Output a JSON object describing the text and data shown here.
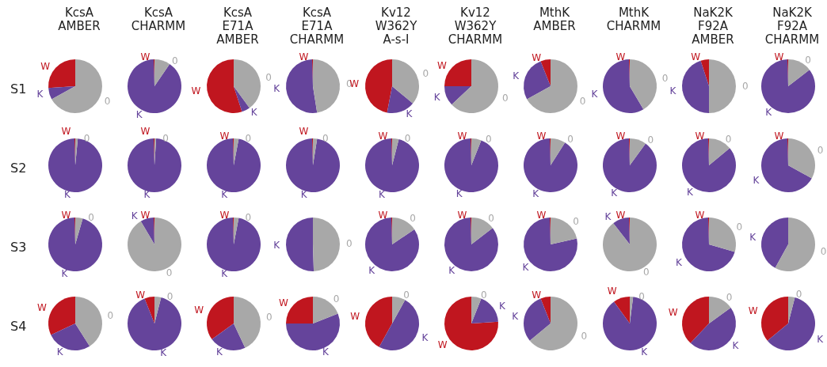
{
  "chart_data": [
    {
      "type": "pie",
      "title": "KcsA\nAMBER",
      "ylabel": "S1",
      "categories": [
        "W",
        "K",
        "0"
      ],
      "values": [
        26,
        7,
        67
      ],
      "colors": [
        "#c0161f",
        "#65449b",
        "#a8a8a8"
      ]
    },
    {
      "type": "pie",
      "title": "KcsA\nCHARMM",
      "categories": [
        "W",
        "K",
        "0"
      ],
      "values": [
        0.5,
        90,
        9.5
      ],
      "colors": [
        "#c0161f",
        "#65449b",
        "#a8a8a8"
      ]
    },
    {
      "type": "pie",
      "title": "KcsA\nE71A\nAMBER",
      "categories": [
        "W",
        "K",
        "0"
      ],
      "values": [
        55,
        5,
        40
      ],
      "colors": [
        "#c0161f",
        "#65449b",
        "#a8a8a8"
      ]
    },
    {
      "type": "pie",
      "title": "KcsA\nE71A\nCHARMM",
      "categories": [
        "W",
        "K",
        "0"
      ],
      "values": [
        0.5,
        52,
        47.5
      ],
      "colors": [
        "#c0161f",
        "#65449b",
        "#a8a8a8"
      ]
    },
    {
      "type": "pie",
      "title": "Kv12\nW362Y\nA-s-I",
      "categories": [
        "W",
        "K",
        "0"
      ],
      "values": [
        47,
        17,
        36
      ],
      "colors": [
        "#c0161f",
        "#65449b",
        "#a8a8a8"
      ]
    },
    {
      "type": "pie",
      "title": "Kv12\nW362Y\nCHARMM",
      "categories": [
        "W",
        "K",
        "0"
      ],
      "values": [
        25,
        12,
        63
      ],
      "colors": [
        "#c0161f",
        "#65449b",
        "#a8a8a8"
      ]
    },
    {
      "type": "pie",
      "title": "MthK\nAMBER",
      "categories": [
        "W",
        "K",
        "0"
      ],
      "values": [
        6,
        27,
        67
      ],
      "colors": [
        "#c0161f",
        "#65449b",
        "#a8a8a8"
      ]
    },
    {
      "type": "pie",
      "title": "MthK\nCHARMM",
      "categories": [
        "W",
        "K",
        "0"
      ],
      "values": [
        0.5,
        58,
        41.5
      ],
      "colors": [
        "#c0161f",
        "#65449b",
        "#a8a8a8"
      ]
    },
    {
      "type": "pie",
      "title": "NaK2K\nF92A\nAMBER",
      "categories": [
        "W",
        "K",
        "0"
      ],
      "values": [
        5,
        45,
        50
      ],
      "colors": [
        "#c0161f",
        "#65449b",
        "#a8a8a8"
      ]
    },
    {
      "type": "pie",
      "title": "NaK2K\nF92A\nCHARMM",
      "categories": [
        "W",
        "K",
        "0"
      ],
      "values": [
        0.5,
        85,
        14.5
      ],
      "colors": [
        "#c0161f",
        "#65449b",
        "#a8a8a8"
      ]
    },
    {
      "type": "pie",
      "ylabel": "S2",
      "categories": [
        "W",
        "K",
        "0"
      ],
      "values": [
        0.5,
        98,
        1.5
      ],
      "colors": [
        "#c0161f",
        "#65449b",
        "#a8a8a8"
      ]
    },
    {
      "type": "pie",
      "categories": [
        "W",
        "K",
        "0"
      ],
      "values": [
        0.5,
        98.5,
        1
      ],
      "colors": [
        "#c0161f",
        "#65449b",
        "#a8a8a8"
      ]
    },
    {
      "type": "pie",
      "categories": [
        "W",
        "K",
        "0"
      ],
      "values": [
        0.5,
        96.5,
        3
      ],
      "colors": [
        "#c0161f",
        "#65449b",
        "#a8a8a8"
      ]
    },
    {
      "type": "pie",
      "categories": [
        "W",
        "K",
        "0"
      ],
      "values": [
        0.5,
        97,
        2.5
      ],
      "colors": [
        "#c0161f",
        "#65449b",
        "#a8a8a8"
      ]
    },
    {
      "type": "pie",
      "categories": [
        "W",
        "K",
        "0"
      ],
      "values": [
        0.5,
        95.5,
        4
      ],
      "colors": [
        "#c0161f",
        "#65449b",
        "#a8a8a8"
      ]
    },
    {
      "type": "pie",
      "categories": [
        "W",
        "K",
        "0"
      ],
      "values": [
        0.5,
        93.5,
        6
      ],
      "colors": [
        "#c0161f",
        "#65449b",
        "#a8a8a8"
      ]
    },
    {
      "type": "pie",
      "categories": [
        "W",
        "K",
        "0"
      ],
      "values": [
        0.5,
        90.5,
        9
      ],
      "colors": [
        "#c0161f",
        "#65449b",
        "#a8a8a8"
      ]
    },
    {
      "type": "pie",
      "categories": [
        "W",
        "K",
        "0"
      ],
      "values": [
        0.5,
        89.5,
        10
      ],
      "colors": [
        "#c0161f",
        "#65449b",
        "#a8a8a8"
      ]
    },
    {
      "type": "pie",
      "categories": [
        "W",
        "K",
        "0"
      ],
      "values": [
        0.5,
        85.5,
        14
      ],
      "colors": [
        "#c0161f",
        "#65449b",
        "#a8a8a8"
      ]
    },
    {
      "type": "pie",
      "categories": [
        "W",
        "K",
        "0"
      ],
      "values": [
        0.5,
        66.5,
        33
      ],
      "colors": [
        "#c0161f",
        "#65449b",
        "#a8a8a8"
      ]
    },
    {
      "type": "pie",
      "ylabel": "S3",
      "categories": [
        "W",
        "K",
        "0"
      ],
      "values": [
        0.5,
        95,
        4.5
      ],
      "colors": [
        "#c0161f",
        "#65449b",
        "#a8a8a8"
      ]
    },
    {
      "type": "pie",
      "categories": [
        "W",
        "K",
        "0"
      ],
      "values": [
        0.5,
        8,
        91.5
      ],
      "colors": [
        "#c0161f",
        "#65449b",
        "#a8a8a8"
      ]
    },
    {
      "type": "pie",
      "categories": [
        "W",
        "K",
        "0"
      ],
      "values": [
        0.5,
        96.5,
        3
      ],
      "colors": [
        "#c0161f",
        "#65449b",
        "#a8a8a8"
      ]
    },
    {
      "type": "pie",
      "categories": [
        "K",
        "0"
      ],
      "values": [
        50.5,
        49.5
      ],
      "colors": [
        "#65449b",
        "#a8a8a8"
      ]
    },
    {
      "type": "pie",
      "categories": [
        "W",
        "K",
        "0"
      ],
      "values": [
        0.5,
        84,
        15.5
      ],
      "colors": [
        "#c0161f",
        "#65449b",
        "#a8a8a8"
      ]
    },
    {
      "type": "pie",
      "categories": [
        "W",
        "K",
        "0"
      ],
      "values": [
        0.5,
        85,
        14.5
      ],
      "colors": [
        "#c0161f",
        "#65449b",
        "#a8a8a8"
      ]
    },
    {
      "type": "pie",
      "categories": [
        "W",
        "K",
        "0"
      ],
      "values": [
        0.5,
        78,
        21.5
      ],
      "colors": [
        "#c0161f",
        "#65449b",
        "#a8a8a8"
      ]
    },
    {
      "type": "pie",
      "categories": [
        "W",
        "K",
        "0"
      ],
      "values": [
        0.5,
        10,
        89.5
      ],
      "colors": [
        "#c0161f",
        "#65449b",
        "#a8a8a8"
      ]
    },
    {
      "type": "pie",
      "categories": [
        "W",
        "K",
        "0"
      ],
      "values": [
        0.5,
        70,
        29.5
      ],
      "colors": [
        "#c0161f",
        "#65449b",
        "#a8a8a8"
      ]
    },
    {
      "type": "pie",
      "categories": [
        "K",
        "0"
      ],
      "values": [
        42,
        58
      ],
      "colors": [
        "#65449b",
        "#a8a8a8"
      ]
    },
    {
      "type": "pie",
      "ylabel": "S4",
      "categories": [
        "W",
        "K",
        "0"
      ],
      "values": [
        32,
        27,
        41
      ],
      "colors": [
        "#c0161f",
        "#65449b",
        "#a8a8a8"
      ]
    },
    {
      "type": "pie",
      "categories": [
        "W",
        "K",
        "0"
      ],
      "values": [
        6,
        90,
        4
      ],
      "colors": [
        "#c0161f",
        "#65449b",
        "#a8a8a8"
      ]
    },
    {
      "type": "pie",
      "categories": [
        "W",
        "K",
        "0"
      ],
      "values": [
        35,
        22,
        43
      ],
      "colors": [
        "#c0161f",
        "#65449b",
        "#a8a8a8"
      ]
    },
    {
      "type": "pie",
      "categories": [
        "W",
        "K",
        "0"
      ],
      "values": [
        25,
        56,
        19
      ],
      "colors": [
        "#c0161f",
        "#65449b",
        "#a8a8a8"
      ]
    },
    {
      "type": "pie",
      "categories": [
        "W",
        "K",
        "0"
      ],
      "values": [
        42,
        50,
        8
      ],
      "colors": [
        "#c0161f",
        "#65449b",
        "#a8a8a8"
      ]
    },
    {
      "type": "pie",
      "categories": [
        "W",
        "K",
        "0"
      ],
      "values": [
        76,
        18,
        6
      ],
      "colors": [
        "#c0161f",
        "#65449b",
        "#a8a8a8"
      ]
    },
    {
      "type": "pie",
      "categories": [
        "W",
        "K",
        "0"
      ],
      "values": [
        6,
        30,
        64
      ],
      "colors": [
        "#c0161f",
        "#65449b",
        "#a8a8a8"
      ]
    },
    {
      "type": "pie",
      "categories": [
        "W",
        "K",
        "0"
      ],
      "values": [
        10,
        88,
        2
      ],
      "colors": [
        "#c0161f",
        "#65449b",
        "#a8a8a8"
      ]
    },
    {
      "type": "pie",
      "categories": [
        "W",
        "K",
        "0"
      ],
      "values": [
        38,
        47,
        15
      ],
      "colors": [
        "#c0161f",
        "#65449b",
        "#a8a8a8"
      ]
    },
    {
      "type": "pie",
      "categories": [
        "W",
        "K",
        "0"
      ],
      "values": [
        36,
        60,
        4
      ],
      "colors": [
        "#c0161f",
        "#65449b",
        "#a8a8a8"
      ]
    }
  ]
}
